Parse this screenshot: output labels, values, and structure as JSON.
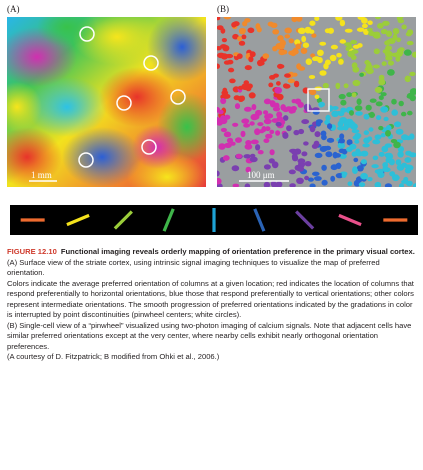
{
  "panels": {
    "a": {
      "label": "(A)",
      "scale_bar": "1 mm"
    },
    "b": {
      "label": "(B)",
      "scale_bar": "100 μm"
    }
  },
  "orientation_key_colors": [
    "#ee6b2f",
    "#f4e21c",
    "#9bcd3a",
    "#3fb54a",
    "#1ea3d6",
    "#2a63b5",
    "#6b3fa0",
    "#e8508a",
    "#ee6b2f"
  ],
  "caption": {
    "figure_number": "FIGURE 12.10",
    "title": "Functional imaging reveals orderly mapping of orientation preference in the primary visual cortex.",
    "lines": [
      "(A) Surface view of the striate cortex, using intrinsic signal imaging techniques to visualize the map of preferred orientation.",
      "Colors indicate the average preferred orientation of columns at a given location; red indicates the location of columns that respond preferentially to horizontal orientations, blue those that respond preferentially to vertical orientations; other colors represent intermediate orientations. The smooth progression of preferred orientations indicated by the gradations in color is interrupted by point discontinuities (pinwheel centers; white circles).",
      "(B) Single-cell view of a “pinwheel” visualized using two-photon imaging of calcium signals. Note that adjacent cells have similar preferred orientations except at the very center, where nearby cells exhibit nearly orthogonal orientation preferences.",
      "(A courtesy of D. Fitzpatrick; B modified from Ohki et al., 2006.)"
    ]
  }
}
